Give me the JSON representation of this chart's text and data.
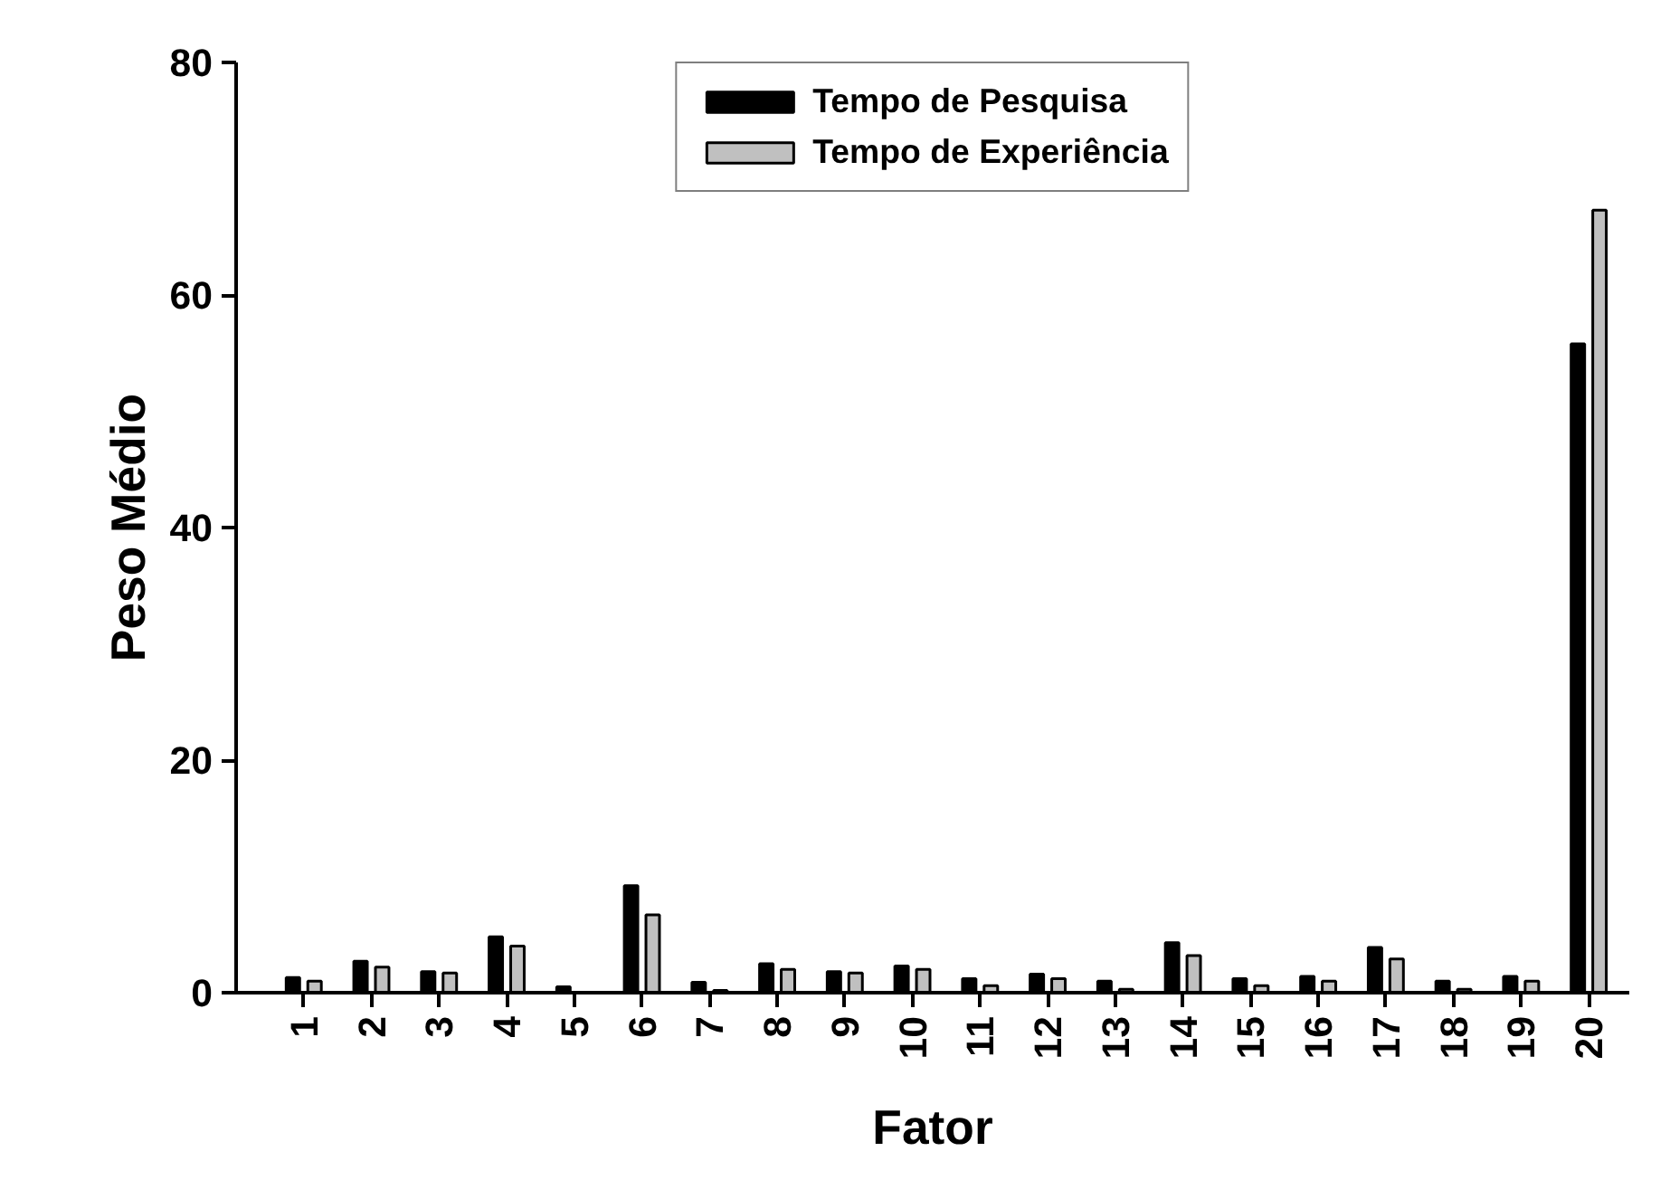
{
  "chart_data": {
    "type": "bar",
    "xlabel": "Fator",
    "ylabel": "Peso Médio",
    "categories": [
      "1",
      "2",
      "3",
      "4",
      "5",
      "6",
      "7",
      "8",
      "9",
      "10",
      "11",
      "12",
      "13",
      "14",
      "15",
      "16",
      "17",
      "18",
      "19",
      "20"
    ],
    "series": [
      {
        "name": "Tempo de Pesquisa",
        "color": "#000000",
        "values": [
          1.3,
          2.7,
          1.8,
          4.8,
          0.5,
          9.2,
          0.9,
          2.5,
          1.8,
          2.3,
          1.2,
          1.6,
          1.0,
          4.3,
          1.2,
          1.4,
          3.9,
          1.0,
          1.4,
          55.8
        ]
      },
      {
        "name": "Tempo de Experiência",
        "color": "#c0c0c0",
        "values": [
          1.0,
          2.2,
          1.7,
          4.0,
          null,
          6.7,
          0.2,
          2.0,
          1.7,
          2.0,
          0.6,
          1.2,
          0.3,
          3.2,
          0.6,
          1.0,
          2.9,
          0.3,
          1.0,
          67.3
        ]
      }
    ],
    "ylim": [
      0,
      80
    ],
    "yticks": [
      0,
      20,
      40,
      60,
      80
    ],
    "grid": false,
    "legend": "top"
  }
}
